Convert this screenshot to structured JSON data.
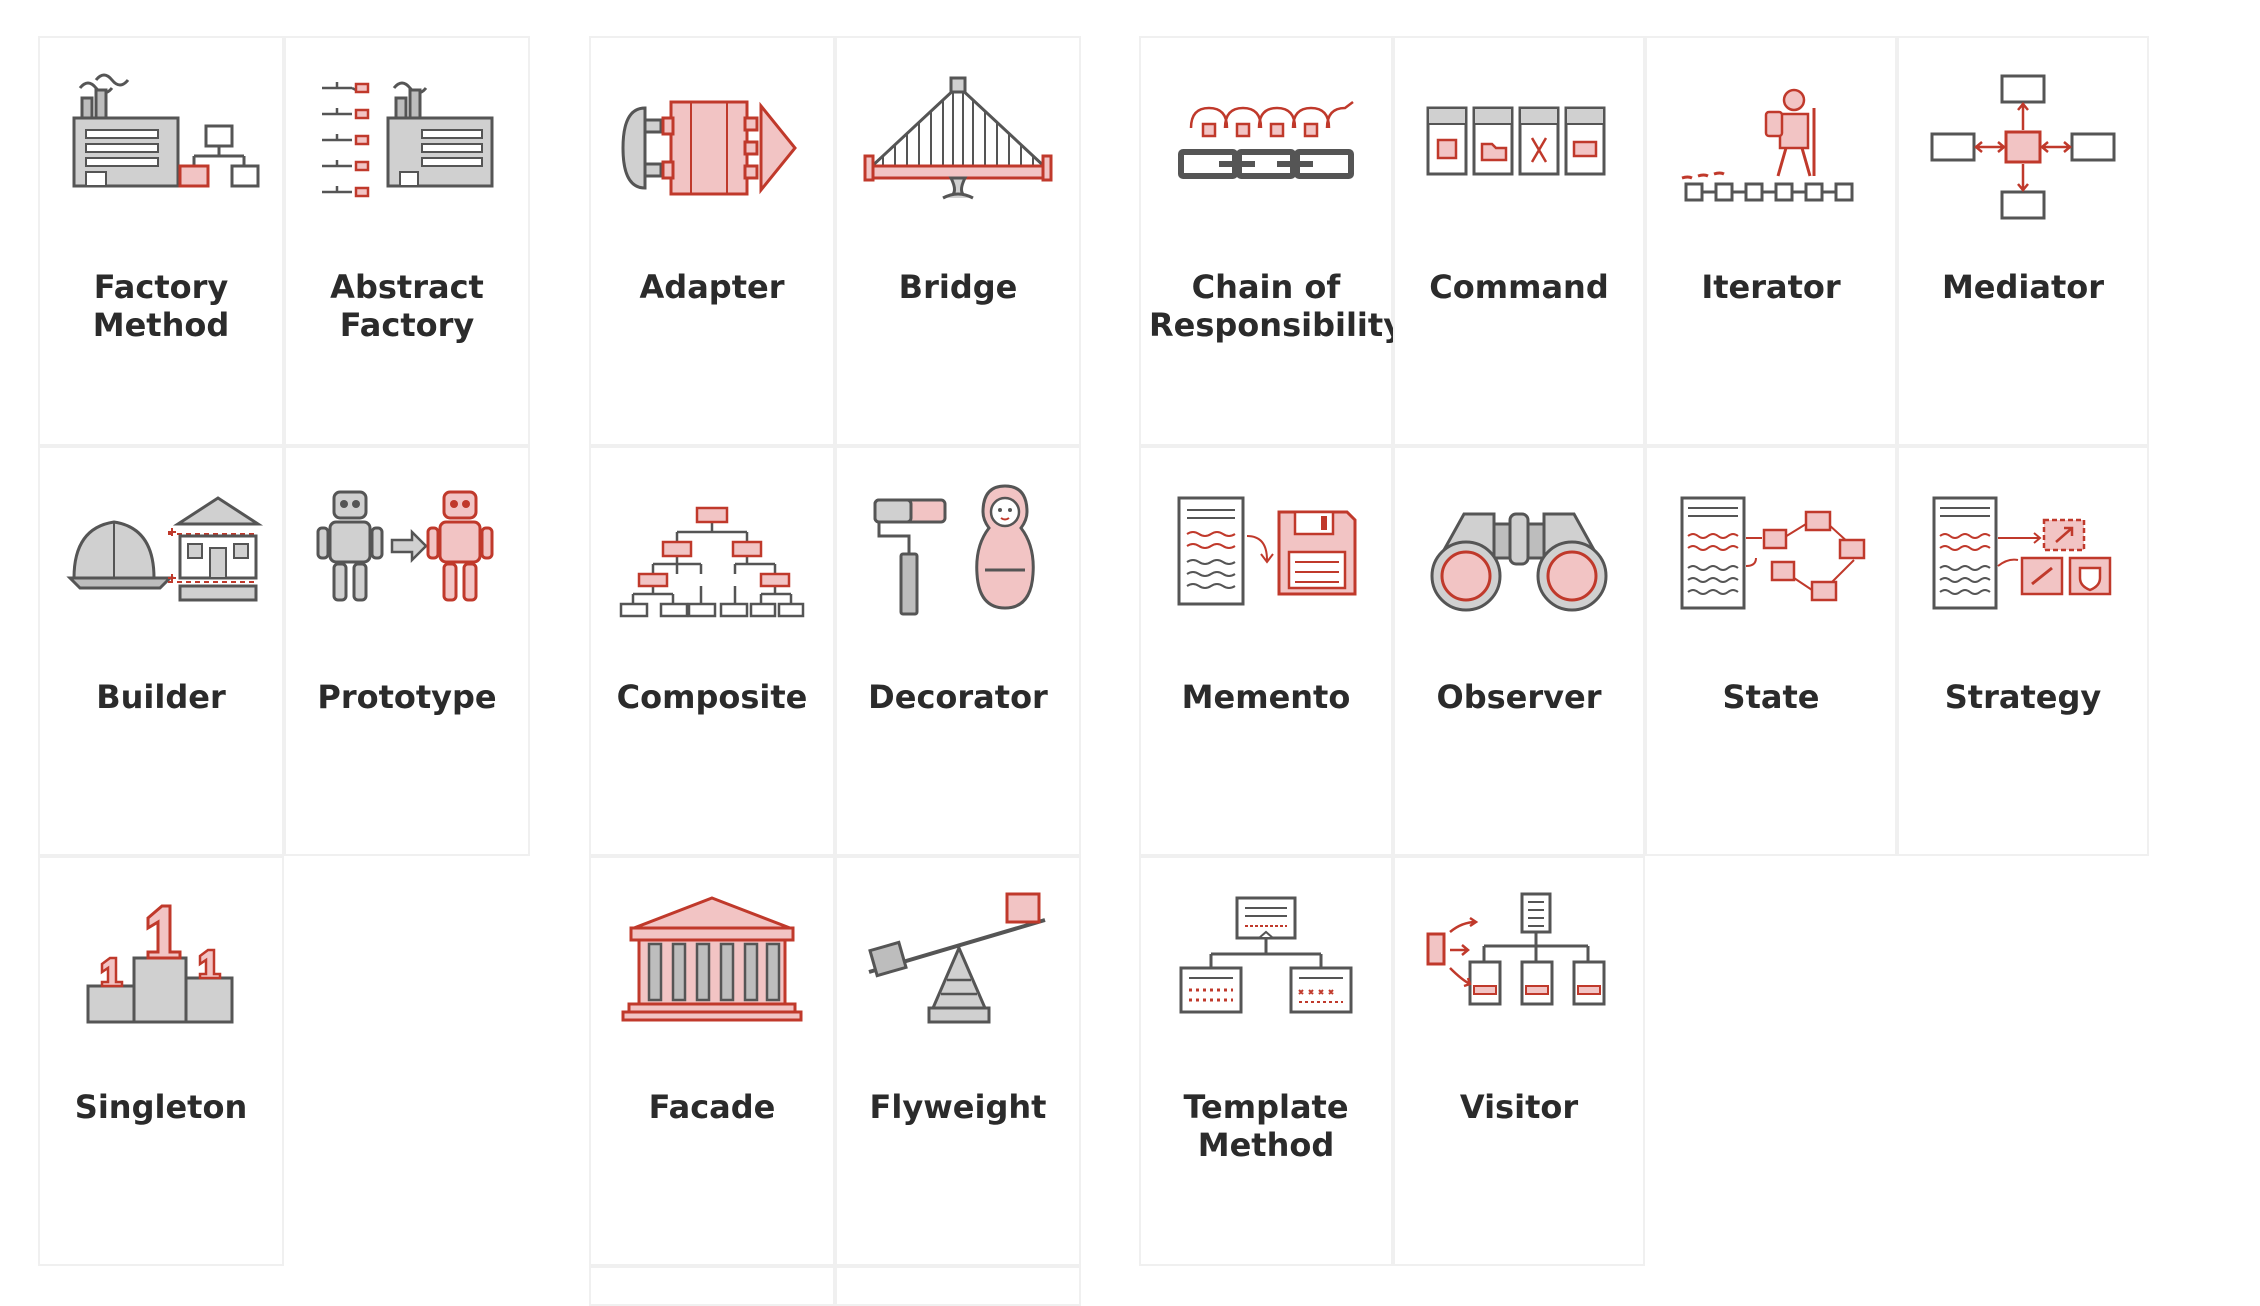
{
  "colors": {
    "accent_red": "#c0392b",
    "light_red": "#f2c4c4",
    "gray_dark": "#555555",
    "gray_fill": "#bdbdbd",
    "card_border": "#f0f0f0",
    "label_text": "#2b2b2b"
  },
  "patterns": {
    "factory_method": {
      "line1": "Factory",
      "line2": "Method",
      "icon": "factory-icon"
    },
    "abstract_factory": {
      "line1": "Abstract",
      "line2": "Factory",
      "icon": "abstract-factory-icon"
    },
    "builder": {
      "line1": "Builder",
      "line2": "",
      "icon": "builder-helmet-house-icon"
    },
    "prototype": {
      "line1": "Prototype",
      "line2": "",
      "icon": "prototype-robots-icon"
    },
    "singleton": {
      "line1": "Singleton",
      "line2": "",
      "icon": "singleton-podium-icon"
    },
    "adapter": {
      "line1": "Adapter",
      "line2": "",
      "icon": "adapter-plug-icon"
    },
    "bridge": {
      "line1": "Bridge",
      "line2": "",
      "icon": "bridge-icon"
    },
    "composite": {
      "line1": "Composite",
      "line2": "",
      "icon": "composite-tree-icon"
    },
    "decorator": {
      "line1": "Decorator",
      "line2": "",
      "icon": "decorator-roller-doll-icon"
    },
    "facade": {
      "line1": "Facade",
      "line2": "",
      "icon": "facade-building-icon"
    },
    "flyweight": {
      "line1": "Flyweight",
      "line2": "",
      "icon": "flyweight-seesaw-icon"
    },
    "chain": {
      "line1": "Chain of",
      "line2": "Responsibility",
      "icon": "chain-icon"
    },
    "command": {
      "line1": "Command",
      "line2": "",
      "icon": "command-icon"
    },
    "iterator": {
      "line1": "Iterator",
      "line2": "",
      "icon": "iterator-hiker-icon"
    },
    "mediator": {
      "line1": "Mediator",
      "line2": "",
      "icon": "mediator-hub-icon"
    },
    "memento": {
      "line1": "Memento",
      "line2": "",
      "icon": "memento-floppy-icon"
    },
    "observer": {
      "line1": "Observer",
      "line2": "",
      "icon": "observer-binoculars-icon"
    },
    "state": {
      "line1": "State",
      "line2": "",
      "icon": "state-machine-icon"
    },
    "strategy": {
      "line1": "Strategy",
      "line2": "",
      "icon": "strategy-icon"
    },
    "template_method": {
      "line1": "Template",
      "line2": "Method",
      "icon": "template-method-icon"
    },
    "visitor": {
      "line1": "Visitor",
      "line2": "",
      "icon": "visitor-icon"
    }
  }
}
